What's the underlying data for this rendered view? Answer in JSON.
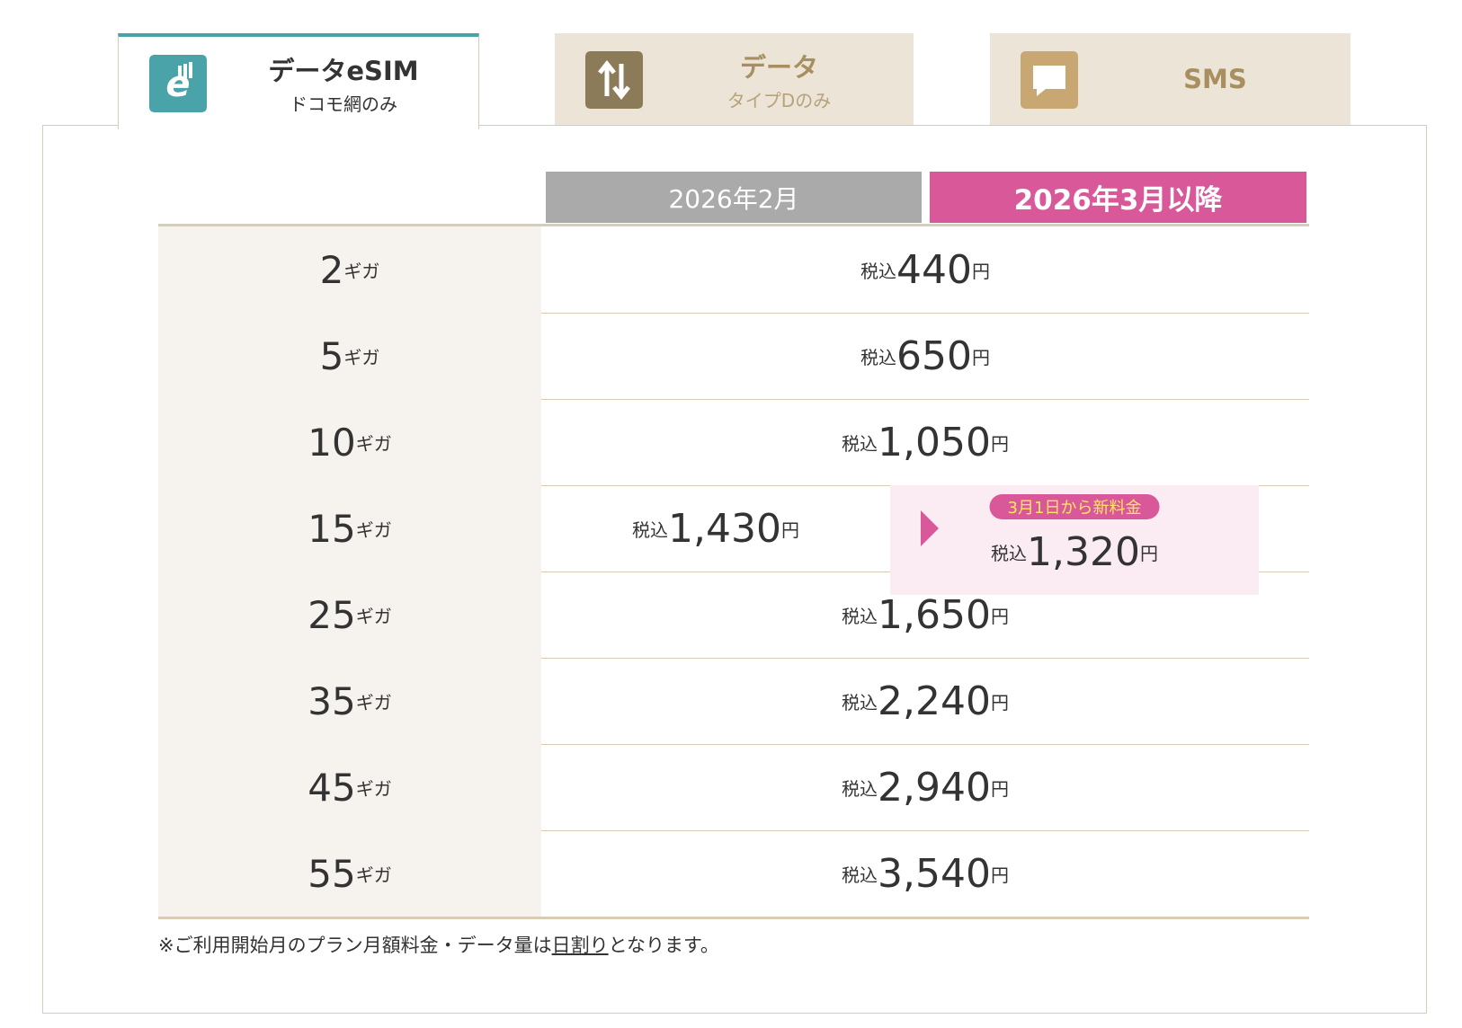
{
  "tabs": [
    {
      "title": "データeSIM",
      "subtitle": "ドコモ網のみ"
    },
    {
      "title": "データ",
      "subtitle": "タイプDのみ"
    },
    {
      "title": "SMS"
    }
  ],
  "table": {
    "headers": [
      "2026年2月",
      "2026年3月以降"
    ],
    "rows": [
      {
        "plan": "2",
        "unit": "ギガ",
        "prices": [
          {
            "tax": "税込",
            "amount": "440",
            "yen": "円"
          }
        ]
      },
      {
        "plan": "5",
        "unit": "ギガ",
        "prices": [
          {
            "tax": "税込",
            "amount": "650",
            "yen": "円"
          }
        ]
      },
      {
        "plan": "10",
        "unit": "ギガ",
        "prices": [
          {
            "tax": "税込",
            "amount": "1,050",
            "yen": "円"
          }
        ]
      },
      {
        "plan": "15",
        "unit": "ギガ",
        "prices": [
          {
            "tax": "税込",
            "amount": "1,430",
            "yen": "円"
          },
          {
            "tax": "税込",
            "amount": "1,320",
            "yen": "円",
            "badge": "3月1日から新料金"
          }
        ]
      },
      {
        "plan": "25",
        "unit": "ギガ",
        "prices": [
          {
            "tax": "税込",
            "amount": "1,650",
            "yen": "円"
          }
        ]
      },
      {
        "plan": "35",
        "unit": "ギガ",
        "prices": [
          {
            "tax": "税込",
            "amount": "2,240",
            "yen": "円"
          }
        ]
      },
      {
        "plan": "45",
        "unit": "ギガ",
        "prices": [
          {
            "tax": "税込",
            "amount": "2,940",
            "yen": "円"
          }
        ]
      },
      {
        "plan": "55",
        "unit": "ギガ",
        "prices": [
          {
            "tax": "税込",
            "amount": "3,540",
            "yen": "円"
          }
        ]
      }
    ]
  },
  "note": {
    "before": "※ご利用開始月のプラン月額料金・データ量は",
    "link": "日割り",
    "after": "となります。"
  }
}
